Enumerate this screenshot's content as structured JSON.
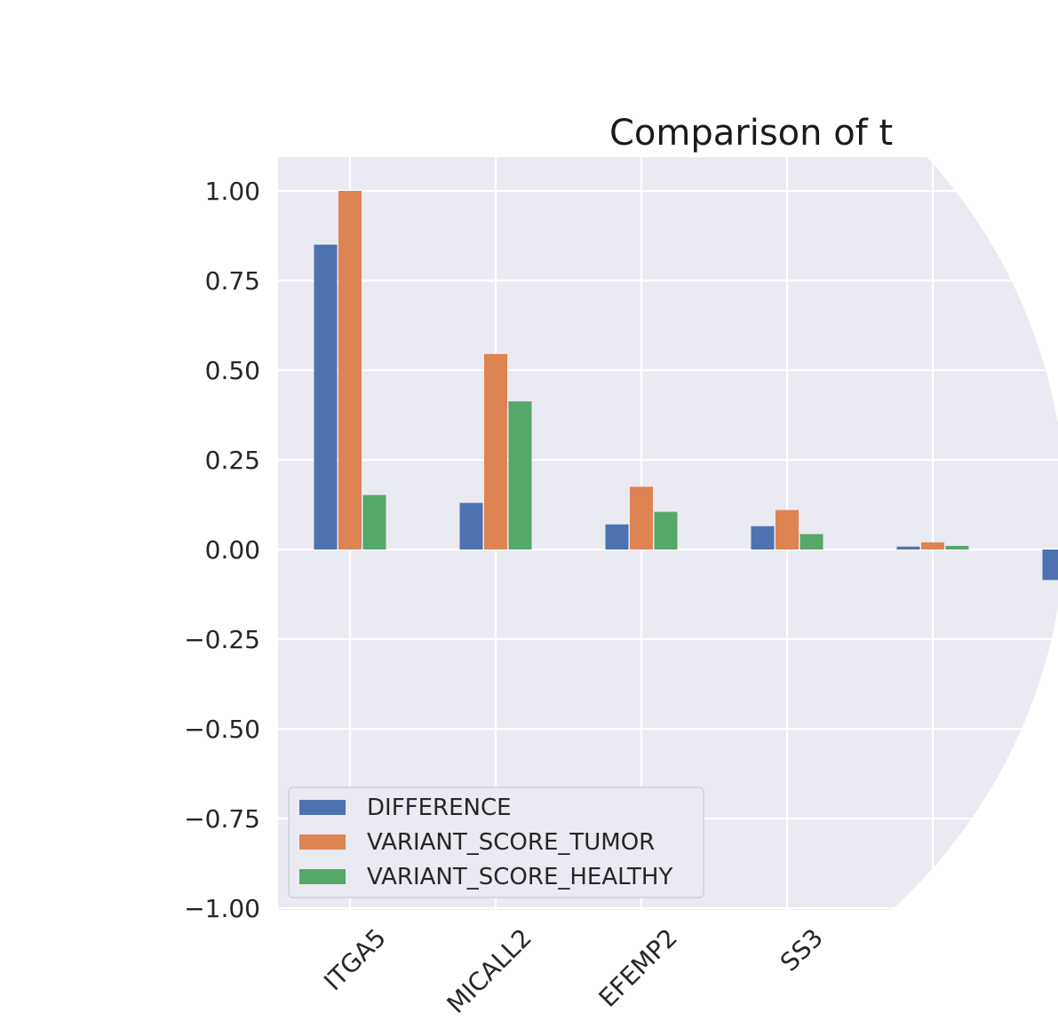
{
  "chart_data": {
    "type": "bar",
    "title": "Comparison of t",
    "xlabel": "",
    "ylabel": "",
    "categories": [
      "ITGA5",
      "MICALL2",
      "EFEMP2",
      "SS3",
      "",
      ""
    ],
    "series": [
      {
        "name": "DIFFERENCE",
        "color": "#4c72b0",
        "values": [
          0.85,
          0.13,
          0.07,
          0.065,
          0.008,
          -0.085
        ]
      },
      {
        "name": "VARIANT_SCORE_TUMOR",
        "color": "#dd8452",
        "values": [
          1.0,
          0.545,
          0.175,
          0.11,
          0.02,
          null
        ]
      },
      {
        "name": "VARIANT_SCORE_HEALTHY",
        "color": "#55a868",
        "values": [
          0.152,
          0.413,
          0.105,
          0.043,
          0.01,
          null
        ]
      }
    ],
    "ylim": [
      -1.0,
      1.0
    ],
    "yticks": [
      "1.00",
      "0.75",
      "0.50",
      "0.25",
      "0.00",
      "−0.25",
      "−0.50",
      "−0.75",
      "−1.00"
    ],
    "ytick_values": [
      1.0,
      0.75,
      0.5,
      0.25,
      0.0,
      -0.25,
      -0.5,
      -0.75,
      -1.0
    ],
    "grid": true,
    "background": "#eaeaf2",
    "legend_position": "bottom-left"
  }
}
